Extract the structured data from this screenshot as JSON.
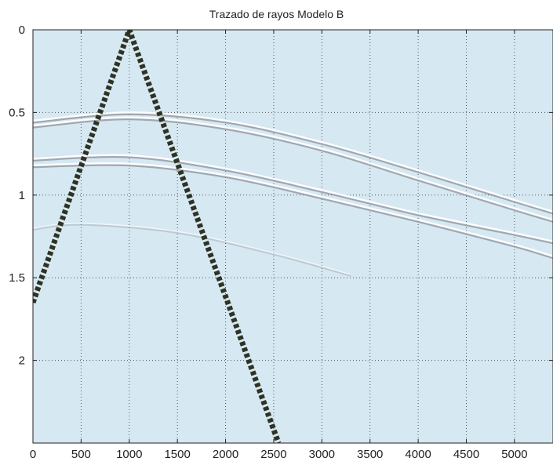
{
  "chart_data": {
    "type": "line",
    "title": "Trazado de rayos Modelo B",
    "xlabel": "",
    "ylabel": "",
    "xlim": [
      0,
      5400
    ],
    "ylim": [
      0,
      2.5
    ],
    "y_reversed": true,
    "grid": true,
    "x_ticks": [
      0,
      500,
      1000,
      1500,
      2000,
      2500,
      3000,
      3500,
      4000,
      4500,
      5000
    ],
    "x_tick_labels": [
      "0",
      "500",
      "1000",
      "1500",
      "2000",
      "2500",
      "3000",
      "3500",
      "4000",
      "4500",
      "5000"
    ],
    "y_ticks": [
      0,
      0.5,
      1,
      1.5,
      2
    ],
    "y_tick_labels": [
      "0",
      "0.5",
      "1",
      "1.5",
      "2"
    ],
    "colors": {
      "plot_background": "#d6e8f2",
      "ray_path": "#2f3324",
      "reflector": "#ffffff",
      "reflector_shadow": "#8c9399",
      "grid": "#333333"
    },
    "series": [
      {
        "style": "dashed-thick",
        "x": [
          0,
          1000,
          2550
        ],
        "y": [
          1.65,
          0.0,
          2.5
        ]
      },
      {
        "style": "reflector",
        "x": [
          0,
          1000,
          2000,
          3000,
          4000,
          5000,
          5400
        ],
        "y": [
          0.55,
          0.5,
          0.55,
          0.68,
          0.85,
          1.03,
          1.1
        ]
      },
      {
        "style": "reflector",
        "x": [
          0,
          1000,
          2000,
          3000,
          4000,
          5000,
          5400
        ],
        "y": [
          0.58,
          0.53,
          0.59,
          0.72,
          0.9,
          1.08,
          1.15
        ]
      },
      {
        "style": "reflector",
        "x": [
          0,
          1000,
          2000,
          3000,
          4000,
          5000,
          5400
        ],
        "y": [
          0.78,
          0.76,
          0.84,
          0.97,
          1.11,
          1.23,
          1.28
        ]
      },
      {
        "style": "reflector",
        "x": [
          0,
          1000,
          2000,
          3000,
          4000,
          5000,
          5400
        ],
        "y": [
          0.82,
          0.81,
          0.88,
          1.01,
          1.15,
          1.3,
          1.37
        ]
      },
      {
        "style": "reflector-faint",
        "x": [
          0,
          500,
          1500,
          2500,
          3300
        ],
        "y": [
          1.2,
          1.17,
          1.22,
          1.35,
          1.48
        ]
      }
    ]
  }
}
